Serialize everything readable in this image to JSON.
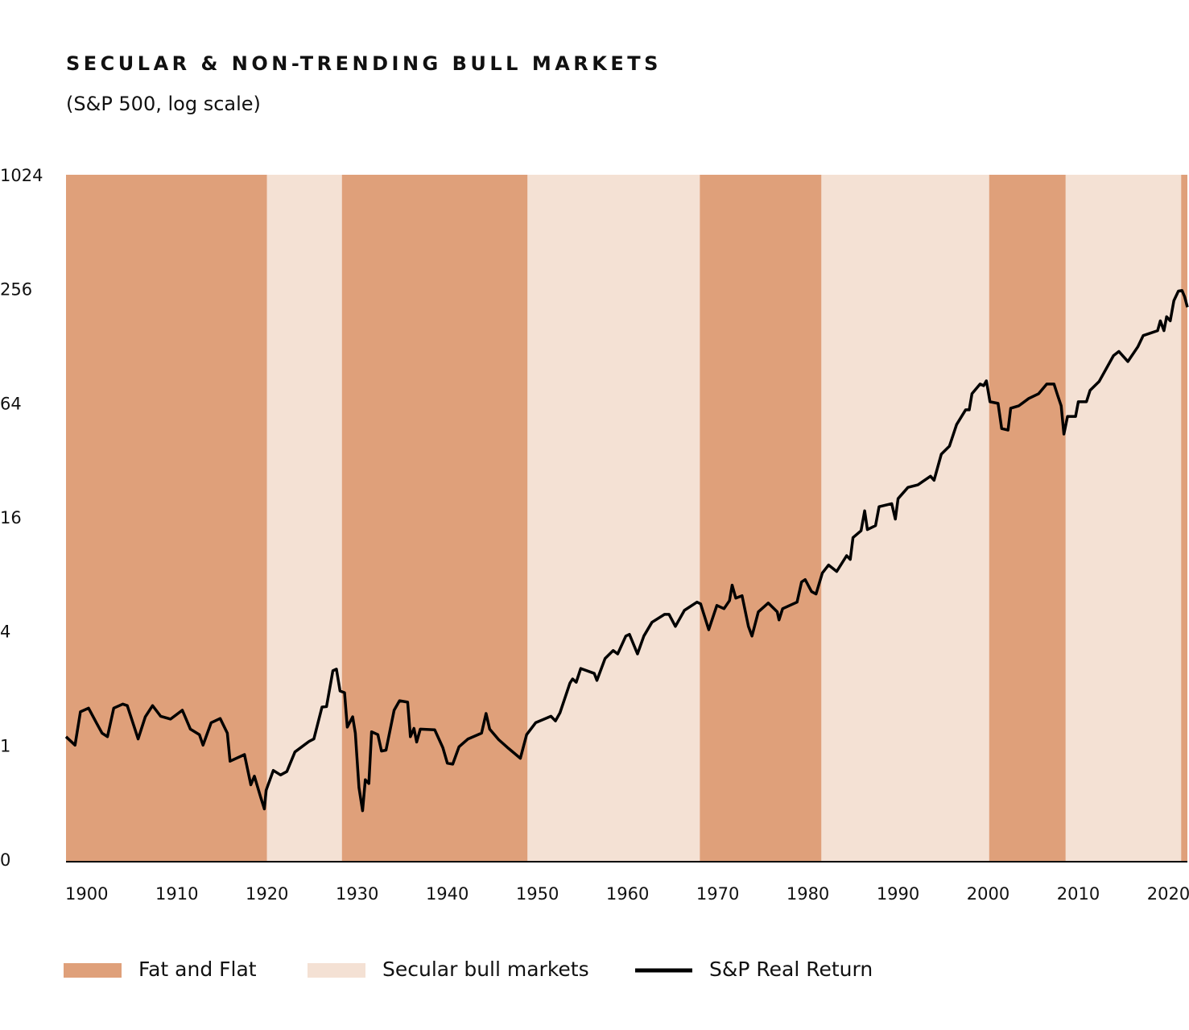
{
  "chart_data": {
    "type": "line",
    "title": "SECULAR & NON-TRENDING BULL MARKETS",
    "subtitle": "(S&P 500, log scale)",
    "log_scale": true,
    "xlim": [
      1897.7,
      2022.1
    ],
    "xticks": [
      1900,
      1910,
      1920,
      1930,
      1940,
      1950,
      1960,
      1970,
      1980,
      1990,
      2000,
      2010,
      2020
    ],
    "ylim": [
      0.25,
      1024
    ],
    "yticks": [
      1024,
      256,
      64,
      16,
      4,
      1,
      {
        "value": 0.25,
        "label": "0"
      }
    ],
    "grid": false,
    "legend": "bottom",
    "bands": [
      {
        "name": "Fat and Flat",
        "color": "#dfa07a",
        "ranges": [
          [
            1897.7,
            1920
          ],
          [
            1928.3,
            1948.9
          ],
          [
            1968,
            1981.5
          ],
          [
            2000.1,
            2008.6
          ],
          [
            2021.4,
            2022.1
          ]
        ]
      },
      {
        "name": "Secular bull markets",
        "color": "#f4e1d4",
        "ranges": [
          [
            1920,
            1928.3
          ],
          [
            1948.9,
            1968
          ],
          [
            1981.5,
            2000.1
          ],
          [
            2008.6,
            2021.4
          ]
        ]
      }
    ],
    "series": [
      {
        "name": "S&P Real Return",
        "color": "#000000",
        "x": [
          1897.7,
          1898.7,
          1899.3,
          1900.2,
          1901.1,
          1901.7,
          1902.3,
          1903.0,
          1904.0,
          1904.5,
          1905.7,
          1906.5,
          1907.3,
          1908.2,
          1909.3,
          1910.6,
          1911.5,
          1912.5,
          1912.9,
          1913.8,
          1914.8,
          1915.6,
          1915.9,
          1917.5,
          1918.2,
          1918.6,
          1919.3,
          1919.7,
          1919.9,
          1920.7,
          1921.5,
          1922.2,
          1923.1,
          1924.7,
          1925.2,
          1926.1,
          1926.6,
          1927.3,
          1927.7,
          1928.1,
          1928.6,
          1928.9,
          1929.5,
          1929.8,
          1930.2,
          1930.6,
          1930.9,
          1931.3,
          1931.6,
          1932.3,
          1932.7,
          1933.2,
          1934.1,
          1934.7,
          1935.6,
          1935.9,
          1936.3,
          1936.6,
          1937.0,
          1938.6,
          1939.5,
          1940.0,
          1940.6,
          1941.3,
          1942.3,
          1943.8,
          1944.3,
          1944.7,
          1945.7,
          1946.8,
          1948.1,
          1948.8,
          1949.8,
          1951.5,
          1952.0,
          1952.5,
          1953.6,
          1953.9,
          1954.3,
          1954.8,
          1956.3,
          1956.6,
          1957.5,
          1958.4,
          1958.9,
          1959.8,
          1960.2,
          1961.1,
          1961.8,
          1962.7,
          1964.1,
          1964.6,
          1965.3,
          1966.3,
          1967.7,
          1968.1,
          1969.0,
          1969.9,
          1970.7,
          1971.3,
          1971.6,
          1972.0,
          1972.7,
          1973.4,
          1973.8,
          1974.5,
          1975.6,
          1976.6,
          1976.8,
          1977.2,
          1978.8,
          1979.3,
          1979.7,
          1980.4,
          1980.9,
          1981.6,
          1982.3,
          1983.2,
          1984.3,
          1984.7,
          1985.0,
          1985.9,
          1986.3,
          1986.6,
          1987.5,
          1987.9,
          1989.3,
          1989.7,
          1990.0,
          1991.1,
          1992.2,
          1993.6,
          1994.0,
          1994.8,
          1995.7,
          1996.5,
          1997.5,
          1997.9,
          1998.2,
          1999.1,
          1999.5,
          1999.8,
          2000.2,
          2001.1,
          2001.5,
          2002.2,
          2002.5,
          2003.4,
          2004.5,
          2005.6,
          2006.5,
          2007.3,
          2007.7,
          2008.1,
          2008.4,
          2008.8,
          2009.7,
          2010.0,
          2010.9,
          2011.3,
          2012.3,
          2013.9,
          2014.5,
          2015.5,
          2016.6,
          2017.2,
          2018.8,
          2019.1,
          2019.5,
          2019.8,
          2020.2,
          2020.6,
          2021.1,
          2021.5,
          2021.8,
          2022.1
        ],
        "values": [
          1.13,
          1.02,
          1.53,
          1.6,
          1.33,
          1.18,
          1.13,
          1.6,
          1.68,
          1.65,
          1.1,
          1.44,
          1.65,
          1.45,
          1.4,
          1.56,
          1.24,
          1.16,
          1.02,
          1.34,
          1.41,
          1.18,
          0.84,
          0.91,
          0.63,
          0.7,
          0.54,
          0.47,
          0.59,
          0.75,
          0.71,
          0.74,
          0.94,
          1.07,
          1.1,
          1.62,
          1.63,
          2.52,
          2.57,
          1.97,
          1.93,
          1.27,
          1.44,
          1.18,
          0.61,
          0.46,
          0.67,
          0.64,
          1.2,
          1.16,
          0.95,
          0.96,
          1.56,
          1.75,
          1.72,
          1.13,
          1.25,
          1.06,
          1.24,
          1.23,
          0.99,
          0.82,
          0.81,
          1.0,
          1.1,
          1.18,
          1.5,
          1.24,
          1.09,
          0.98,
          0.87,
          1.16,
          1.34,
          1.45,
          1.37,
          1.51,
          2.17,
          2.28,
          2.19,
          2.59,
          2.44,
          2.24,
          2.92,
          3.22,
          3.09,
          3.84,
          3.92,
          3.09,
          3.84,
          4.54,
          5.0,
          5.0,
          4.32,
          5.25,
          5.8,
          5.68,
          4.15,
          5.57,
          5.36,
          5.91,
          7.13,
          6.09,
          6.27,
          4.32,
          3.84,
          5.15,
          5.74,
          5.15,
          4.67,
          5.36,
          5.8,
          7.41,
          7.63,
          6.59,
          6.4,
          8.26,
          9.11,
          8.42,
          10.2,
          9.75,
          12.7,
          13.8,
          17.6,
          14.0,
          14.7,
          18.5,
          19.2,
          15.9,
          20.4,
          23.4,
          24.1,
          26.8,
          25.5,
          35.0,
          38.6,
          50.2,
          60.0,
          60.0,
          73.0,
          82.1,
          80.5,
          85.4,
          66.2,
          64.9,
          47.8,
          46.9,
          61.2,
          63.0,
          68.9,
          73.0,
          82.1,
          82.1,
          71.6,
          63.0,
          44.7,
          55.4,
          55.4,
          66.2,
          66.2,
          76.0,
          84.6,
          116,
          122,
          108,
          129,
          148,
          157,
          177,
          157,
          186,
          177,
          226,
          254,
          256,
          237,
          209
        ]
      }
    ]
  }
}
